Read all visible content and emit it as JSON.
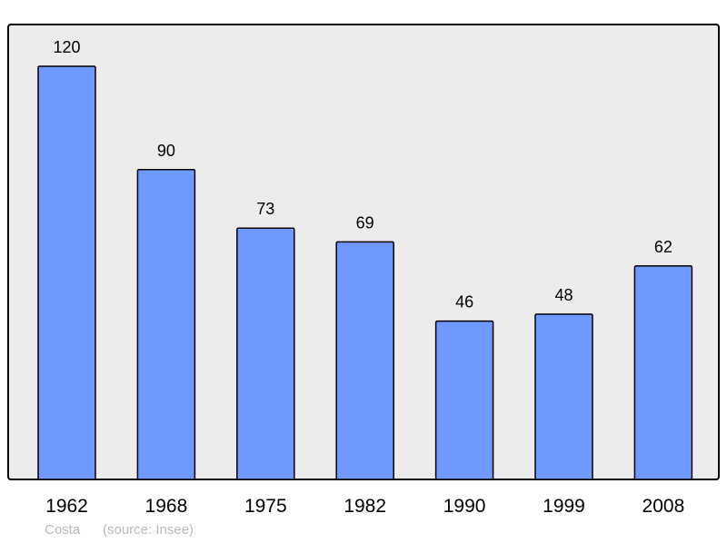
{
  "chart_data": {
    "type": "bar",
    "categories": [
      "1962",
      "1968",
      "1975",
      "1982",
      "1990",
      "1999",
      "2008"
    ],
    "values": [
      120,
      90,
      73,
      69,
      46,
      48,
      62
    ],
    "title": "",
    "xlabel": "",
    "ylabel": "",
    "ylim": [
      0,
      132
    ],
    "grid": false,
    "data_labels": true,
    "colors": {
      "bar": "#7099ff",
      "plot_background": "#ececec",
      "border": "#000000"
    }
  },
  "footer": {
    "place": "Costa",
    "source": "(source: Insee)"
  }
}
